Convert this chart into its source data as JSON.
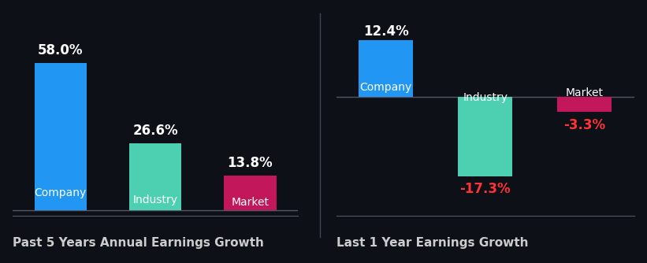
{
  "background_color": "#0d1117",
  "left_chart": {
    "title": "Past 5 Years Annual Earnings Growth",
    "bars": [
      {
        "label": "Company",
        "value": 58.0,
        "color": "#2196f3"
      },
      {
        "label": "Industry",
        "value": 26.6,
        "color": "#4dd0b1"
      },
      {
        "label": "Market",
        "value": 13.8,
        "color": "#c2185b"
      }
    ]
  },
  "right_chart": {
    "title": "Last 1 Year Earnings Growth",
    "bars": [
      {
        "label": "Company",
        "value": 12.4,
        "color": "#2196f3"
      },
      {
        "label": "Industry",
        "value": -17.3,
        "color": "#4dd0b1"
      },
      {
        "label": "Market",
        "value": -3.3,
        "color": "#c2185b"
      }
    ]
  },
  "label_color_positive": "#ffffff",
  "label_color_negative": "#ff3333",
  "bar_label_inside_color": "#ffffff",
  "title_color": "#cccccc",
  "title_fontsize": 11,
  "value_fontsize": 12,
  "bar_label_fontsize": 10,
  "divider_color": "#444455"
}
